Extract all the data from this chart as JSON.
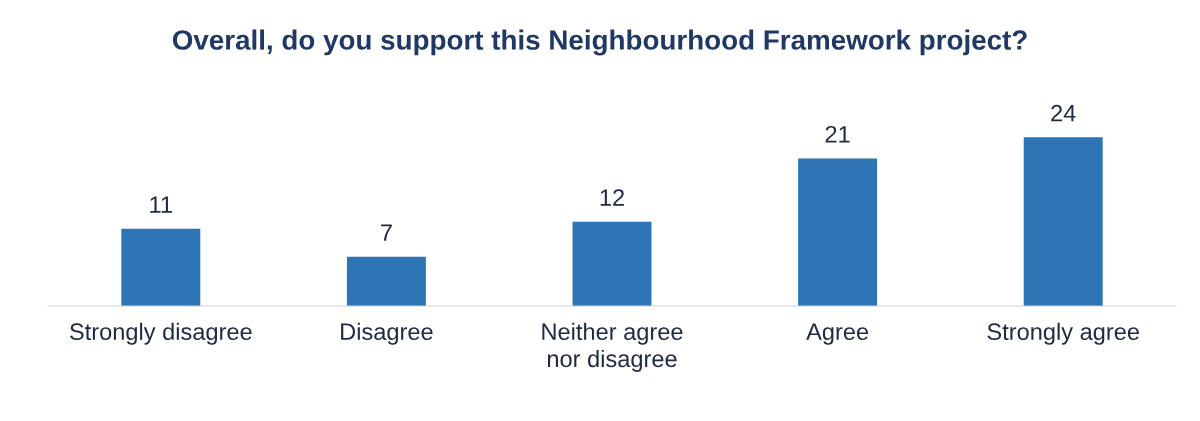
{
  "chart_data": {
    "type": "bar",
    "title": "Overall, do you support this Neighbourhood Framework project?",
    "categories": [
      "Strongly disagree",
      "Disagree",
      "Neither agree nor disagree",
      "Agree",
      "Strongly agree"
    ],
    "values": [
      11,
      7,
      12,
      21,
      24
    ],
    "color": "#2e75b6",
    "data_labels": true,
    "grid": false,
    "legend": false
  }
}
